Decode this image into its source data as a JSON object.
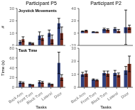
{
  "chart_data": [
    {
      "type": "bar",
      "title": "Participant P5",
      "ylabel": "#",
      "annotation": "Joystick Movements",
      "categories": [
        "Back Arm",
        "Front Turn",
        "Block Turn",
        "Lateral",
        "Door"
      ],
      "series": [
        {
          "color": "#2e3f7c",
          "values": [
            3.0,
            2.0,
            8.0,
            10.0,
            18.0
          ],
          "errors": [
            1.0,
            0.5,
            3.0,
            2.5,
            4.0
          ]
        },
        {
          "color": "#7b2d1e",
          "values": [
            5.0,
            1.5,
            6.0,
            5.0,
            10.0
          ],
          "errors": [
            2.0,
            0.5,
            2.0,
            3.5,
            5.0
          ]
        }
      ],
      "ylim": [
        0,
        30
      ],
      "yticks": [
        0,
        10,
        20,
        30
      ],
      "tick_labels": "y"
    },
    {
      "type": "bar",
      "title": "Participant P2",
      "categories": [
        "Back Arm",
        "Front Turn",
        "Block Turn",
        "Lateral",
        "Door"
      ],
      "series": [
        {
          "color": "#2e3f7c",
          "values": [
            3.0,
            2.0,
            6.5,
            7.0,
            9.5
          ],
          "errors": [
            0.5,
            0.3,
            1.5,
            2.0,
            28.0
          ]
        },
        {
          "color": "#7b2d1e",
          "values": [
            4.0,
            1.5,
            5.5,
            3.5,
            9.5
          ],
          "errors": [
            0.8,
            0.4,
            1.5,
            2.5,
            3.5
          ]
        }
      ],
      "ylim": [
        -20,
        40
      ],
      "yticks": [
        -20,
        0,
        20,
        40
      ],
      "tick_labels": "y"
    },
    {
      "type": "bar",
      "ylabel": "Time (s)",
      "xlabel": "Tasks",
      "annotation": "Task Time",
      "categories": [
        "Back Arm",
        "Front Turn",
        "Block Turn",
        "Lateral",
        "Door"
      ],
      "series": [
        {
          "color": "#2e3f7c",
          "values": [
            10.0,
            5.5,
            11.0,
            7.0,
            50.0
          ],
          "errors": [
            2.0,
            0.8,
            2.5,
            1.5,
            22.0
          ]
        },
        {
          "color": "#7b2d1e",
          "values": [
            9.0,
            5.0,
            10.0,
            5.5,
            20.0
          ],
          "errors": [
            1.5,
            0.5,
            2.0,
            1.0,
            6.0
          ]
        }
      ],
      "ylim": [
        0,
        80
      ],
      "yticks": [
        0,
        20,
        40,
        60,
        80
      ]
    },
    {
      "type": "bar",
      "xlabel": "Tasks",
      "categories": [
        "Back Arm",
        "Front Turn",
        "Block Turn",
        "Lateral",
        "Door"
      ],
      "series": [
        {
          "color": "#2e3f7c",
          "values": [
            10.0,
            6.0,
            11.0,
            11.0,
            13.0
          ],
          "errors": [
            1.5,
            0.5,
            1.5,
            2.0,
            3.0
          ]
        },
        {
          "color": "#7b2d1e",
          "values": [
            10.5,
            5.5,
            10.5,
            9.5,
            18.0
          ],
          "errors": [
            2.0,
            0.5,
            2.0,
            1.5,
            6.0
          ]
        }
      ],
      "ylim": [
        0,
        30
      ],
      "yticks": [
        0,
        10,
        20,
        30
      ]
    }
  ]
}
